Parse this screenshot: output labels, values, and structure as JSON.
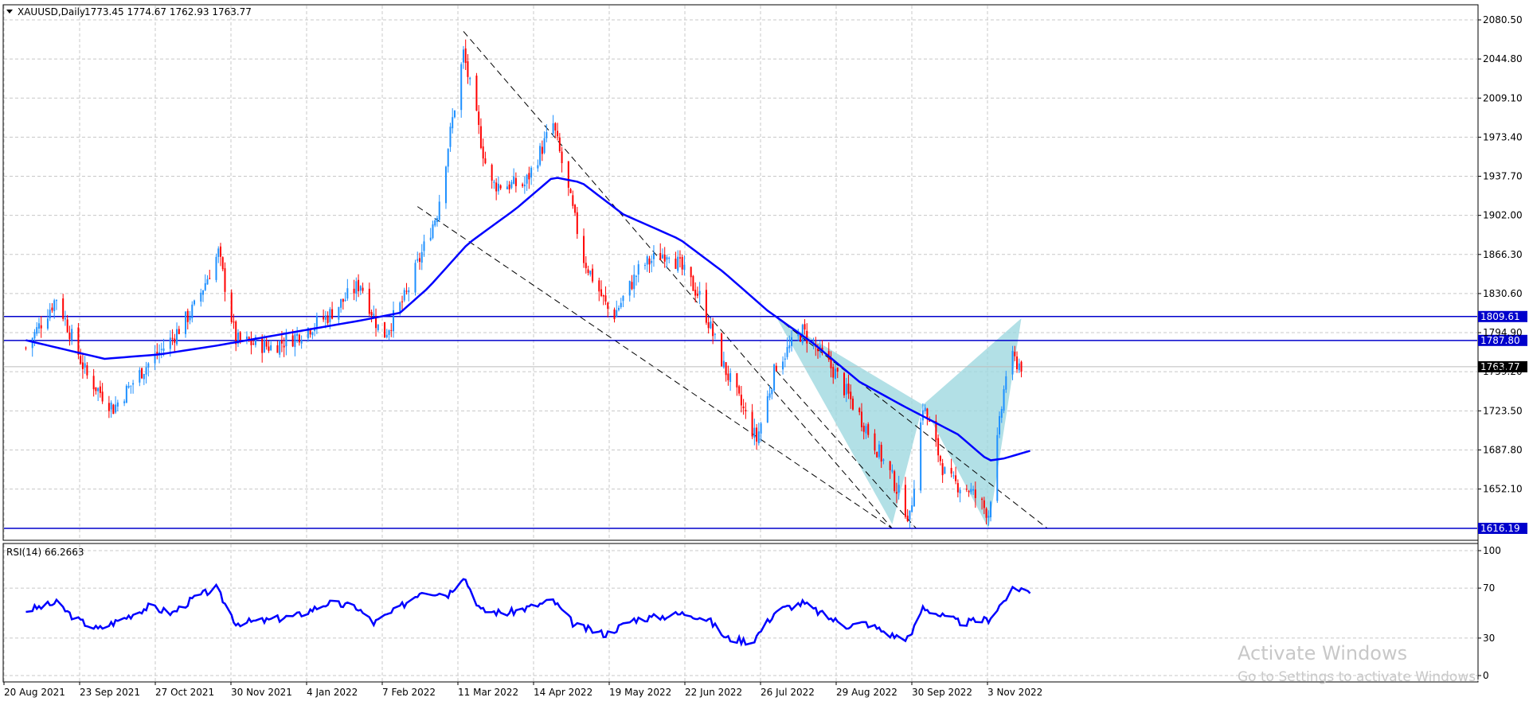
{
  "chart_data": [
    {
      "type": "candlestick",
      "symbol_header": "XAUUSD,Daily",
      "ohlc_header": "1773.45 1774.67 1762.93 1763.77",
      "bull_color": "#1e90ff",
      "bear_color": "#ff0000",
      "ma_color": "#0000ff",
      "fill_color": "#9fd8e0",
      "y_ticks": [
        "2080.50",
        "2044.80",
        "2009.10",
        "1973.40",
        "1937.70",
        "1902.00",
        "1866.30",
        "1830.60",
        "1794.90",
        "1759.20",
        "1723.50",
        "1687.80",
        "1652.10"
      ],
      "ylim": [
        1616.19,
        2080.5
      ],
      "x_ticks": [
        "20 Aug 2021",
        "23 Sep 2021",
        "27 Oct 2021",
        "30 Nov 2021",
        "4 Jan 2022",
        "7 Feb 2022",
        "11 Mar 2022",
        "14 Apr 2022",
        "19 May 2022",
        "22 Jun 2022",
        "26 Jul 2022",
        "29 Aug 2022",
        "30 Sep 2022",
        "3 Nov 2022"
      ],
      "horizontal_levels": [
        {
          "label": "1809.61",
          "value": 1809.61
        },
        {
          "label": "1787.80",
          "value": 1787.8
        },
        {
          "label": "1616.19",
          "value": 1616.19
        }
      ],
      "current_price_label": "1763.77",
      "current_price": 1763.77,
      "pattern": {
        "name": "",
        "points": [
          {
            "date": "2022-07-29",
            "price": 1809
          },
          {
            "date": "2022-09-20",
            "price": 1620
          },
          {
            "date": "2022-10-04",
            "price": 1729
          },
          {
            "date": "2022-11-03",
            "price": 1616
          },
          {
            "date": "2022-11-18",
            "price": 1808
          }
        ]
      },
      "trendlines": [
        {
          "from": {
            "date": "2022-03-08",
            "price": 2070
          },
          "to": {
            "date": "2022-09-20",
            "price": 1616
          }
        },
        {
          "from": {
            "date": "2022-02-15",
            "price": 1910
          },
          "to": {
            "date": "2022-09-20",
            "price": 1616
          }
        },
        {
          "from": {
            "date": "2022-07-29",
            "price": 1809
          },
          "to": {
            "date": "2022-11-30",
            "price": 1616
          }
        },
        {
          "from": {
            "date": "2022-07-29",
            "price": 1760
          },
          "to": {
            "date": "2022-10-01",
            "price": 1616
          }
        }
      ],
      "ma_series_approx": [
        {
          "date": "2021-08-20",
          "value": 1788
        },
        {
          "date": "2021-09-10",
          "value": 1778
        },
        {
          "date": "2021-09-25",
          "value": 1771
        },
        {
          "date": "2021-10-20",
          "value": 1775
        },
        {
          "date": "2021-11-15",
          "value": 1783
        },
        {
          "date": "2021-12-05",
          "value": 1790
        },
        {
          "date": "2021-12-25",
          "value": 1797
        },
        {
          "date": "2022-01-20",
          "value": 1806
        },
        {
          "date": "2022-02-07",
          "value": 1813
        },
        {
          "date": "2022-02-20",
          "value": 1836
        },
        {
          "date": "2022-03-10",
          "value": 1876
        },
        {
          "date": "2022-04-01",
          "value": 1908
        },
        {
          "date": "2022-04-18",
          "value": 1937
        },
        {
          "date": "2022-05-01",
          "value": 1932
        },
        {
          "date": "2022-05-20",
          "value": 1903
        },
        {
          "date": "2022-06-15",
          "value": 1880
        },
        {
          "date": "2022-07-05",
          "value": 1850
        },
        {
          "date": "2022-07-25",
          "value": 1815
        },
        {
          "date": "2022-08-15",
          "value": 1785
        },
        {
          "date": "2022-09-05",
          "value": 1750
        },
        {
          "date": "2022-09-25",
          "value": 1728
        },
        {
          "date": "2022-10-20",
          "value": 1702
        },
        {
          "date": "2022-11-03",
          "value": 1678
        },
        {
          "date": "2022-11-10",
          "value": 1680
        },
        {
          "date": "2022-11-22",
          "value": 1687
        }
      ],
      "price_series_approx": [
        {
          "date": "2021-08-20",
          "close": 1781
        },
        {
          "date": "2021-09-03",
          "close": 1827
        },
        {
          "date": "2021-09-17",
          "close": 1755
        },
        {
          "date": "2021-09-29",
          "close": 1726
        },
        {
          "date": "2021-10-12",
          "close": 1760
        },
        {
          "date": "2021-10-26",
          "close": 1790
        },
        {
          "date": "2021-11-05",
          "close": 1818
        },
        {
          "date": "2021-11-16",
          "close": 1868
        },
        {
          "date": "2021-11-24",
          "close": 1788
        },
        {
          "date": "2021-12-10",
          "close": 1782
        },
        {
          "date": "2021-12-20",
          "close": 1790
        },
        {
          "date": "2022-01-05",
          "close": 1810
        },
        {
          "date": "2022-01-20",
          "close": 1840
        },
        {
          "date": "2022-01-30",
          "close": 1790
        },
        {
          "date": "2022-02-10",
          "close": 1830
        },
        {
          "date": "2022-02-24",
          "close": 1905
        },
        {
          "date": "2022-03-08",
          "close": 2050
        },
        {
          "date": "2022-03-20",
          "close": 1930
        },
        {
          "date": "2022-04-05",
          "close": 1930
        },
        {
          "date": "2022-04-18",
          "close": 1985
        },
        {
          "date": "2022-05-02",
          "close": 1862
        },
        {
          "date": "2022-05-15",
          "close": 1808
        },
        {
          "date": "2022-05-28",
          "close": 1855
        },
        {
          "date": "2022-06-10",
          "close": 1870
        },
        {
          "date": "2022-06-24",
          "close": 1828
        },
        {
          "date": "2022-07-05",
          "close": 1764
        },
        {
          "date": "2022-07-20",
          "close": 1697
        },
        {
          "date": "2022-07-29",
          "close": 1766
        },
        {
          "date": "2022-08-10",
          "close": 1796
        },
        {
          "date": "2022-08-25",
          "close": 1758
        },
        {
          "date": "2022-09-07",
          "close": 1712
        },
        {
          "date": "2022-09-20",
          "close": 1662
        },
        {
          "date": "2022-09-28",
          "close": 1625
        },
        {
          "date": "2022-10-04",
          "close": 1729
        },
        {
          "date": "2022-10-15",
          "close": 1660
        },
        {
          "date": "2022-10-25",
          "close": 1652
        },
        {
          "date": "2022-11-03",
          "close": 1630
        },
        {
          "date": "2022-11-08",
          "close": 1711
        },
        {
          "date": "2022-11-12",
          "close": 1773
        },
        {
          "date": "2022-11-18",
          "close": 1765
        }
      ],
      "x_start": "2021-08-10",
      "x_end": "2022-11-28"
    },
    {
      "type": "line",
      "indicator_label": "RSI(14) 66.2663",
      "y_ticks": [
        "100",
        "70",
        "30",
        "0"
      ],
      "ylim": [
        0,
        100
      ],
      "line_color": "#0000ff",
      "series_approx": [
        {
          "date": "2021-08-20",
          "value": 52
        },
        {
          "date": "2021-09-03",
          "value": 58
        },
        {
          "date": "2021-09-12",
          "value": 45
        },
        {
          "date": "2021-09-22",
          "value": 37
        },
        {
          "date": "2021-10-04",
          "value": 46
        },
        {
          "date": "2021-10-15",
          "value": 55
        },
        {
          "date": "2021-10-26",
          "value": 50
        },
        {
          "date": "2021-11-05",
          "value": 62
        },
        {
          "date": "2021-11-15",
          "value": 70
        },
        {
          "date": "2021-11-24",
          "value": 42
        },
        {
          "date": "2021-12-08",
          "value": 44
        },
        {
          "date": "2021-12-22",
          "value": 48
        },
        {
          "date": "2022-01-05",
          "value": 58
        },
        {
          "date": "2022-01-18",
          "value": 55
        },
        {
          "date": "2022-01-26",
          "value": 42
        },
        {
          "date": "2022-02-05",
          "value": 52
        },
        {
          "date": "2022-02-17",
          "value": 68
        },
        {
          "date": "2022-03-01",
          "value": 65
        },
        {
          "date": "2022-03-08",
          "value": 80
        },
        {
          "date": "2022-03-16",
          "value": 52
        },
        {
          "date": "2022-03-28",
          "value": 50
        },
        {
          "date": "2022-04-08",
          "value": 55
        },
        {
          "date": "2022-04-18",
          "value": 60
        },
        {
          "date": "2022-04-28",
          "value": 40
        },
        {
          "date": "2022-05-12",
          "value": 33
        },
        {
          "date": "2022-05-25",
          "value": 45
        },
        {
          "date": "2022-06-06",
          "value": 47
        },
        {
          "date": "2022-06-18",
          "value": 50
        },
        {
          "date": "2022-06-28",
          "value": 45
        },
        {
          "date": "2022-07-06",
          "value": 30
        },
        {
          "date": "2022-07-18",
          "value": 27
        },
        {
          "date": "2022-07-29",
          "value": 52
        },
        {
          "date": "2022-08-10",
          "value": 58
        },
        {
          "date": "2022-08-20",
          "value": 48
        },
        {
          "date": "2022-08-30",
          "value": 40
        },
        {
          "date": "2022-09-08",
          "value": 42
        },
        {
          "date": "2022-09-20",
          "value": 32
        },
        {
          "date": "2022-09-28",
          "value": 30
        },
        {
          "date": "2022-10-04",
          "value": 55
        },
        {
          "date": "2022-10-12",
          "value": 48
        },
        {
          "date": "2022-10-22",
          "value": 42
        },
        {
          "date": "2022-11-03",
          "value": 45
        },
        {
          "date": "2022-11-10",
          "value": 60
        },
        {
          "date": "2022-11-14",
          "value": 68
        },
        {
          "date": "2022-11-18",
          "value": 70
        },
        {
          "date": "2022-11-22",
          "value": 66
        }
      ]
    }
  ],
  "watermark": {
    "line1": "Activate Windows",
    "line2": "Go to Settings to activate Windows."
  }
}
